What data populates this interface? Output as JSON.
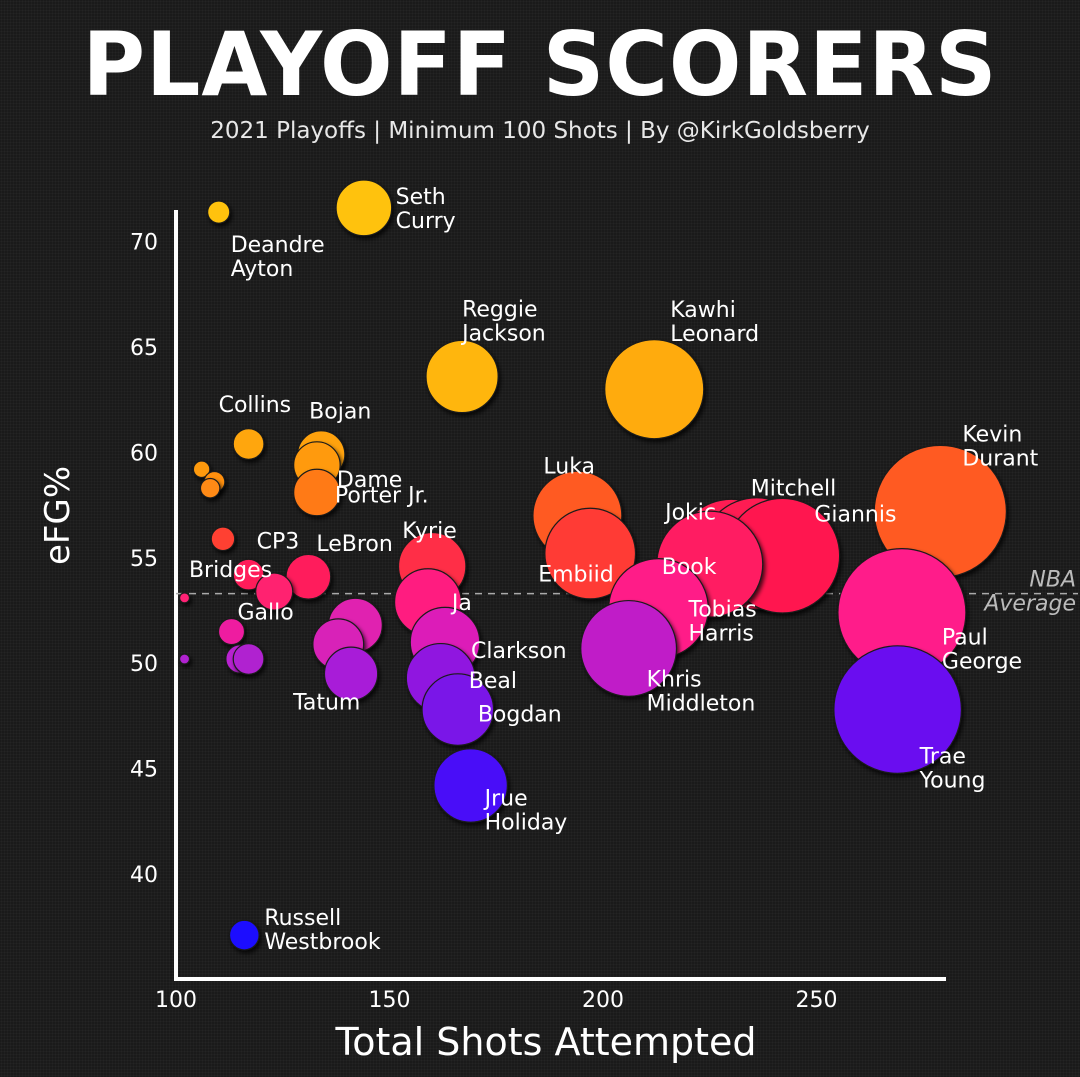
{
  "header": {
    "title": "PLAYOFF SCORERS",
    "subtitle": "2021 Playoffs | Minimum 100 Shots | By @KirkGoldsberry"
  },
  "chart_data": {
    "type": "scatter",
    "title": "PLAYOFF SCORERS",
    "subtitle": "2021 Playoffs | Minimum 100 Shots | By @KirkGoldsberry",
    "xlabel": "Total Shots Attempted",
    "ylabel": "eFG%",
    "xlim": [
      100,
      280
    ],
    "ylim": [
      37,
      72
    ],
    "xticks": [
      100,
      150,
      200,
      250
    ],
    "yticks": [
      40,
      45,
      50,
      55,
      60,
      65,
      70
    ],
    "reference_line": {
      "label_lines": [
        "NBA",
        "Average"
      ],
      "y": 53.3
    },
    "size_encoding": "marker size scales with total shots attempted",
    "color_encoding": "marker color scales with eFG% (gold high, blue low)",
    "points": [
      {
        "label": [
          "Deandre",
          "Ayton"
        ],
        "x": 110,
        "y": 71.4,
        "color": "#ffc20e"
      },
      {
        "label": [
          "Seth",
          "Curry"
        ],
        "x": 144,
        "y": 71.6,
        "color": "#ffc20e"
      },
      {
        "label": [
          "Reggie",
          "Jackson"
        ],
        "x": 167,
        "y": 63.6,
        "color": "#ffb60c"
      },
      {
        "label": [
          "Kawhi",
          "Leonard"
        ],
        "x": 212,
        "y": 63.0,
        "color": "#ffab0a"
      },
      {
        "label": [
          "Collins"
        ],
        "x": 117,
        "y": 60.4,
        "color": "#ffa60c"
      },
      {
        "label": [
          "Bojan"
        ],
        "x": 134,
        "y": 59.9,
        "color": "#ffa20e"
      },
      {
        "label": [],
        "x": 106,
        "y": 59.2,
        "color": "#ff9a0e"
      },
      {
        "label": [],
        "x": 109,
        "y": 58.6,
        "color": "#ff8f10"
      },
      {
        "label": [],
        "x": 108,
        "y": 58.3,
        "color": "#ff8a12"
      },
      {
        "label": [
          "Dame"
        ],
        "x": 133,
        "y": 59.4,
        "color": "#ff9a0e"
      },
      {
        "label": [
          "Porter Jr."
        ],
        "x": 133,
        "y": 58.1,
        "color": "#ff7a18"
      },
      {
        "label": [
          "Luka"
        ],
        "x": 194,
        "y": 57.0,
        "color": "#ff5a22"
      },
      {
        "label": [
          "Kevin",
          "Durant"
        ],
        "x": 279,
        "y": 57.2,
        "color": "#ff5a24"
      },
      {
        "label": [
          "Embiid"
        ],
        "x": 197,
        "y": 55.2,
        "color": "#ff3a34"
      },
      {
        "label": [
          "Bridges"
        ],
        "x": 111,
        "y": 55.9,
        "color": "#ff4030"
      },
      {
        "label": [
          "Kyrie"
        ],
        "x": 160,
        "y": 54.6,
        "color": "#ff2e46"
      },
      {
        "label": [
          "Jokic"
        ],
        "x": 230,
        "y": 55.2,
        "color": "#ff1f52"
      },
      {
        "label": [
          "Mitchell"
        ],
        "x": 236,
        "y": 55.2,
        "color": "#ff1c52"
      },
      {
        "label": [
          "Giannis"
        ],
        "x": 242,
        "y": 55.1,
        "color": "#ff1850"
      },
      {
        "label": [
          "Book"
        ],
        "x": 225,
        "y": 54.7,
        "color": "#ff1a62"
      },
      {
        "label": [
          "CP3"
        ],
        "x": 117,
        "y": 54.2,
        "color": "#ff1f5a"
      },
      {
        "label": [
          "LeBron"
        ],
        "x": 131,
        "y": 54.1,
        "color": "#ff1f5c"
      },
      {
        "label": [],
        "x": 123,
        "y": 53.4,
        "color": "#ff2070"
      },
      {
        "label": [],
        "x": 102,
        "y": 53.1,
        "color": "#ff2074"
      },
      {
        "label": [
          "Ja"
        ],
        "x": 159,
        "y": 52.9,
        "color": "#ff1e80"
      },
      {
        "label": [
          "Tobias",
          "Harris"
        ],
        "x": 213,
        "y": 52.6,
        "color": "#ff1a88"
      },
      {
        "label": [
          "Paul",
          "George"
        ],
        "x": 270,
        "y": 52.4,
        "color": "#ff1a8a"
      },
      {
        "label": [
          "Gallo"
        ],
        "x": 113,
        "y": 51.5,
        "color": "#ee1fa0"
      },
      {
        "label": [],
        "x": 142,
        "y": 51.8,
        "color": "#e020b0"
      },
      {
        "label": [],
        "x": 138,
        "y": 50.9,
        "color": "#d824b8"
      },
      {
        "label": [
          "Clarkson"
        ],
        "x": 163,
        "y": 51.0,
        "color": "#dc1fb8"
      },
      {
        "label": [
          "Khris",
          "Middleton"
        ],
        "x": 206,
        "y": 50.7,
        "color": "#c01cc8"
      },
      {
        "label": [],
        "x": 102,
        "y": 50.2,
        "color": "#b020d0"
      },
      {
        "label": [],
        "x": 115,
        "y": 50.2,
        "color": "#b820d0"
      },
      {
        "label": [],
        "x": 117,
        "y": 50.2,
        "color": "#b020d0"
      },
      {
        "label": [
          "Tatum"
        ],
        "x": 141,
        "y": 49.5,
        "color": "#a81cd8"
      },
      {
        "label": [
          "Beal"
        ],
        "x": 162,
        "y": 49.3,
        "color": "#9018e0"
      },
      {
        "label": [
          "Bogdan"
        ],
        "x": 166,
        "y": 47.8,
        "color": "#7a14e8"
      },
      {
        "label": [
          "Trae",
          "Young"
        ],
        "x": 269,
        "y": 47.8,
        "color": "#6a10f0"
      },
      {
        "label": [
          "Jrue",
          "Holiday"
        ],
        "x": 169,
        "y": 44.2,
        "color": "#4a10f8"
      },
      {
        "label": [
          "Russell",
          "Westbrook"
        ],
        "x": 116,
        "y": 37.1,
        "color": "#1a10ff"
      }
    ]
  }
}
